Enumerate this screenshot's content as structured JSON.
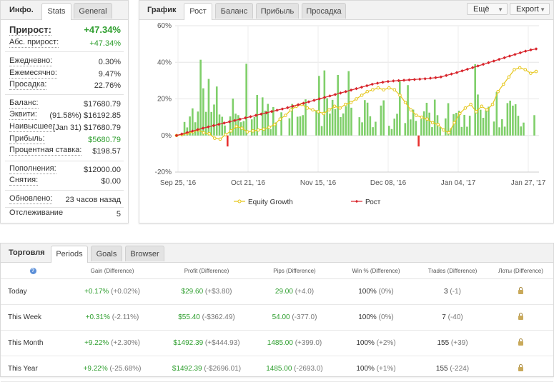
{
  "info": {
    "title": "Инфо.",
    "tabs": [
      "Stats",
      "General"
    ],
    "gain_label": "Прирост:",
    "gain_value": "+47.34%",
    "abs_gain_label": "Абс. прирост:",
    "abs_gain_value": "+47.34%",
    "daily_label": "Ежедневно:",
    "daily_value": "0.30%",
    "monthly_label": "Ежемесячно:",
    "monthly_value": "9.47%",
    "drawdown_label": "Просадка:",
    "drawdown_value": "22.76%",
    "balance_label": "Баланс:",
    "balance_value": "$17680.79",
    "equity_label": "Эквити:",
    "equity_value": "(91.58%) $16192.85",
    "highest_label": "Наивысшее:",
    "highest_value": "(Jan 31) $17680.79",
    "profit_label": "Прибыль:",
    "profit_value": "$5680.79",
    "interest_label": "Процентная ставка:",
    "interest_value": "$198.57",
    "deposits_label": "Пополнения:",
    "deposits_value": "$12000.00",
    "withdrawals_label": "Снятия:",
    "withdrawals_value": "$0.00",
    "updated_label": "Обновлено:",
    "updated_value": "23 часов назад",
    "tracking_label": "Отслеживание",
    "tracking_value": "5"
  },
  "chart_panel": {
    "title": "График",
    "tabs": [
      "Рост",
      "Баланс",
      "Прибыль",
      "Просадка"
    ],
    "more_label": "Ещё",
    "export_label": "Export"
  },
  "chart_data": {
    "type": "line",
    "ylim": [
      -20,
      60
    ],
    "y_ticks": [
      "60%",
      "40%",
      "20%",
      "0%",
      "-20%"
    ],
    "x_ticks": [
      "Sep 25, '16",
      "Oct 21, '16",
      "Nov 15, '16",
      "Dec 08, '16",
      "Jan 04, '17",
      "Jan 27, '17"
    ],
    "grid": true,
    "legend_position": "bottom",
    "series": [
      {
        "name": "Equity Growth",
        "color": "#e6c619",
        "values": [
          0,
          0.5,
          1.2,
          2.0,
          3.0,
          1.5,
          1.0,
          -1.5,
          -2.0,
          0.5,
          2.5,
          5.0,
          4.0,
          2.0,
          2.5,
          3.0,
          3.5,
          4.5,
          6.0,
          9.0,
          11.0,
          14.0,
          16.0,
          17.0,
          15.0,
          14.0,
          13.0,
          12.0,
          14.0,
          16.0,
          15.0,
          17.0,
          18.0,
          20.0,
          22.0,
          24.0,
          25.0,
          26.0,
          25.0,
          26.0,
          25.0,
          22.0,
          18.0,
          14.0,
          11.0,
          10.0,
          9.0,
          7.0,
          6.0,
          3.0,
          1.5,
          7.0,
          12.0,
          15.0,
          17.0,
          13.0,
          16.0,
          14.0,
          17.0,
          24.0,
          28.0,
          32.0,
          36.0,
          37.0,
          36.0,
          34.0,
          35.0
        ]
      },
      {
        "name": "Рост",
        "color": "#d8242b",
        "values": [
          0,
          0.8,
          1.6,
          2.4,
          3.2,
          4.0,
          4.7,
          5.4,
          6.1,
          6.8,
          7.5,
          8.2,
          8.9,
          9.6,
          10.3,
          11.0,
          11.7,
          12.4,
          13.1,
          13.8,
          14.5,
          15.2,
          16.0,
          16.8,
          17.6,
          18.4,
          19.2,
          20.0,
          20.8,
          21.6,
          22.4,
          23.2,
          24.0,
          24.8,
          25.6,
          26.4,
          27.2,
          28.0,
          28.6,
          29.1,
          29.5,
          29.8,
          30.0,
          30.2,
          30.4,
          30.6,
          30.8,
          31.0,
          31.3,
          31.6,
          32.0,
          32.8,
          33.6,
          34.4,
          35.3,
          36.2,
          37.1,
          38.0,
          38.9,
          39.8,
          40.7,
          41.6,
          42.5,
          43.4,
          44.3,
          45.2,
          46.1,
          46.8,
          47.3
        ]
      }
    ]
  },
  "trading": {
    "title": "Торговля",
    "tabs": [
      "Periods",
      "Goals",
      "Browser"
    ],
    "columns": [
      "",
      "Gain (Difference)",
      "Profit (Difference)",
      "Pips (Difference)",
      "Win % (Difference)",
      "Trades (Difference)",
      "Лоты (Difference)"
    ],
    "help_icon": "?",
    "rows": [
      {
        "period": "Today",
        "gain": "+0.17%",
        "gain_diff": "(+0.02%)",
        "profit": "$29.60",
        "profit_diff": "(+$3.80)",
        "pips": "29.00",
        "pips_diff": "(+4.0)",
        "win": "100%",
        "win_diff": "(0%)",
        "trades": "3",
        "trades_diff": "(-1)"
      },
      {
        "period": "This Week",
        "gain": "+0.31%",
        "gain_diff": "(-2.11%)",
        "profit": "$55.40",
        "profit_diff": "(-$362.49)",
        "pips": "54.00",
        "pips_diff": "(-377.0)",
        "win": "100%",
        "win_diff": "(0%)",
        "trades": "7",
        "trades_diff": "(-40)"
      },
      {
        "period": "This Month",
        "gain": "+9.22%",
        "gain_diff": "(+2.30%)",
        "profit": "$1492.39",
        "profit_diff": "(+$444.93)",
        "pips": "1485.00",
        "pips_diff": "(+399.0)",
        "win": "100%",
        "win_diff": "(+2%)",
        "trades": "155",
        "trades_diff": "(+39)"
      },
      {
        "period": "This Year",
        "gain": "+9.22%",
        "gain_diff": "(-25.68%)",
        "profit": "$1492.39",
        "profit_diff": "(-$2696.01)",
        "pips": "1485.00",
        "pips_diff": "(-2693.0)",
        "win": "100%",
        "win_diff": "(+1%)",
        "trades": "155",
        "trades_diff": "(-224)"
      }
    ]
  }
}
